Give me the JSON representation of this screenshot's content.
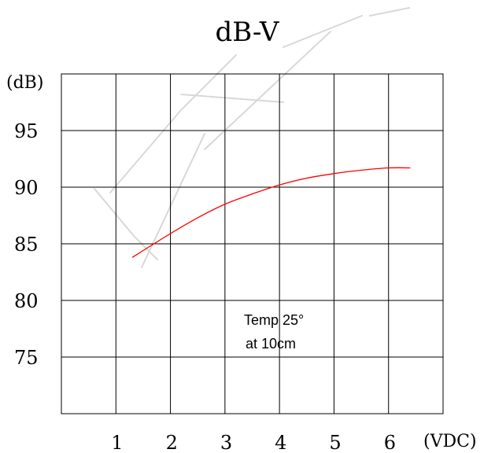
{
  "chart_data": {
    "type": "line",
    "title": "dB-V",
    "ylabel": "(dB)",
    "xlabel": "(VDC)",
    "x_ticks": [
      "1",
      "2",
      "3",
      "4",
      "5",
      "6"
    ],
    "y_ticks": [
      "95",
      "90",
      "85",
      "80",
      "75"
    ],
    "xlim": [
      0,
      7
    ],
    "ylim": [
      70,
      100
    ],
    "grid": true,
    "series": [
      {
        "color": "#ff0000",
        "x": [
          1.3,
          2.0,
          2.5,
          3.0,
          3.5,
          4.0,
          4.5,
          5.0,
          5.5,
          6.0,
          6.4
        ],
        "y": [
          83.8,
          85.9,
          87.3,
          88.5,
          89.4,
          90.2,
          90.8,
          91.2,
          91.5,
          91.7,
          91.7
        ]
      }
    ],
    "annotations": [
      "Temp 25°",
      "at 10cm"
    ]
  }
}
